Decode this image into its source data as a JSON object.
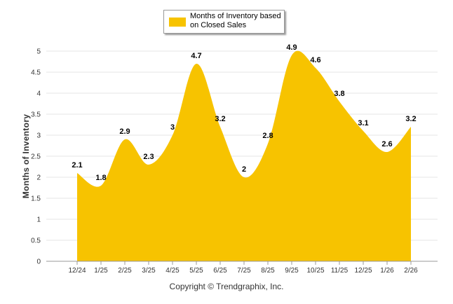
{
  "colors": {
    "area": "#F7C300",
    "grid": "#e6e6e6",
    "axis": "#999999"
  },
  "legend": {
    "label": "Months of Inventory based on Closed Sales"
  },
  "footer": {
    "copyright": "Copyright © Trendgraphix, Inc."
  },
  "chart_data": {
    "type": "area",
    "title": "",
    "xlabel": "",
    "ylabel": "Months of Inventory",
    "ylim": [
      0,
      5
    ],
    "yticks": [
      "0",
      "0.5",
      "1",
      "1.5",
      "2",
      "2.5",
      "3",
      "3.5",
      "4",
      "4.5",
      "5"
    ],
    "categories": [
      "12/24",
      "1/25",
      "2/25",
      "3/25",
      "4/25",
      "5/25",
      "6/25",
      "7/25",
      "8/25",
      "9/25",
      "10/25",
      "11/25",
      "12/25",
      "1/26",
      "2/26"
    ],
    "series": [
      {
        "name": "Months of Inventory based on Closed Sales",
        "values": [
          2.1,
          1.8,
          2.9,
          2.3,
          3,
          4.7,
          3.2,
          2,
          2.8,
          4.9,
          4.6,
          3.8,
          3.1,
          2.6,
          3.2
        ]
      }
    ],
    "legend_position": "top-center"
  }
}
